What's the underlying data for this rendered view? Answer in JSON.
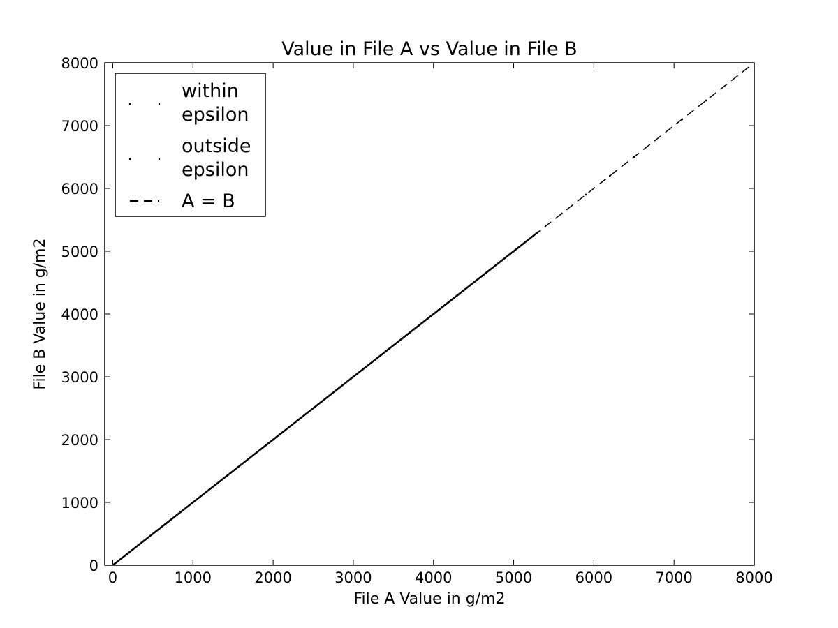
{
  "chart_data": {
    "type": "scatter",
    "title": "Value in File A vs Value in File B",
    "xlabel": "File A Value in g/m2",
    "ylabel": "File B Value in g/m2",
    "xlim": [
      -100,
      8000
    ],
    "ylim": [
      0,
      8000
    ],
    "xticks": [
      0,
      1000,
      2000,
      3000,
      4000,
      5000,
      6000,
      7000,
      8000
    ],
    "yticks": [
      0,
      1000,
      2000,
      3000,
      4000,
      5000,
      6000,
      7000,
      8000
    ],
    "xtick_labels": [
      "0",
      "1000",
      "2000",
      "3000",
      "4000",
      "5000",
      "6000",
      "7000",
      "8000"
    ],
    "ytick_labels": [
      "0",
      "1000",
      "2000",
      "3000",
      "4000",
      "5000",
      "6000",
      "7000",
      "8000"
    ],
    "grid": false,
    "legend_position": "top-left",
    "series": [
      {
        "name": "within epsilon",
        "legend_lines": [
          "within",
          "epsilon"
        ],
        "marker": "point",
        "color": "#000000",
        "x": [
          0,
          200,
          500,
          800,
          1000,
          1300,
          1600,
          2000,
          2300,
          2600,
          3000,
          3300,
          3600,
          4000,
          4300,
          4600,
          5000,
          5300,
          5600,
          5900,
          6200,
          6500,
          7100,
          7400
        ],
        "y": [
          0,
          200,
          500,
          800,
          1000,
          1300,
          1600,
          2000,
          2300,
          2600,
          3000,
          3300,
          3600,
          4000,
          4300,
          4600,
          5000,
          5300,
          5600,
          5900,
          6200,
          6500,
          7100,
          7400
        ]
      },
      {
        "name": "outside epsilon",
        "legend_lines": [
          "outside",
          "epsilon"
        ],
        "marker": "point",
        "color": "#000000",
        "x": [],
        "y": []
      },
      {
        "name": "A = B",
        "legend_lines": [
          "A = B"
        ],
        "style": "dashed",
        "color": "#000000",
        "x": [
          -100,
          7950
        ],
        "y": [
          -100,
          7950
        ]
      }
    ]
  }
}
